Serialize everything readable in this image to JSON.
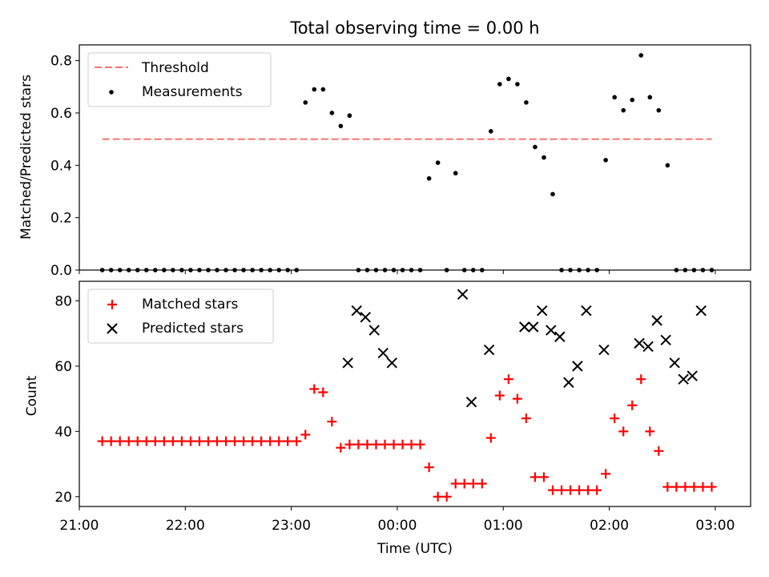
{
  "title": "Total observing time = 0.00 h",
  "chart_data": [
    {
      "type": "scatter",
      "ylabel": "Matched/Predicted stars",
      "xlabel": "",
      "xlim": [
        -180,
        200
      ],
      "ylim": [
        0,
        0.86
      ],
      "yticks": [
        0.0,
        0.2,
        0.4,
        0.6,
        0.8
      ],
      "ytick_labels": [
        "0.0",
        "0.2",
        "0.4",
        "0.6",
        "0.8"
      ],
      "legend": {
        "position": "top-left",
        "entries": [
          "Threshold",
          "Measurements"
        ]
      },
      "threshold": {
        "name": "Threshold",
        "y": 0.5,
        "x_range": [
          -167,
          178
        ],
        "color": "#ff7070",
        "style": "dashed"
      },
      "series": [
        {
          "name": "Measurements",
          "marker": "dot",
          "color": "#000000",
          "x": [
            -167,
            -162,
            -157,
            -152,
            -147,
            -142,
            -137,
            -132,
            -127,
            -122,
            -117,
            -112,
            -107,
            -102,
            -97,
            -92,
            -87,
            -82,
            -77,
            -72,
            -67,
            -62,
            -57,
            -52,
            -47,
            -42,
            -37,
            -32,
            -27,
            -22,
            -17,
            -12,
            -7,
            -2,
            3,
            8,
            13,
            18,
            23,
            28,
            33,
            38,
            43,
            48,
            53,
            58,
            63,
            68,
            73,
            78,
            83,
            88,
            93,
            98,
            103,
            108,
            113,
            118,
            123,
            128,
            133,
            138,
            143,
            148,
            153,
            158,
            163,
            168,
            173,
            178
          ],
          "y": [
            0,
            0,
            0,
            0,
            0,
            0,
            0,
            0,
            0,
            0,
            0,
            0,
            0,
            0,
            0,
            0,
            0,
            0,
            0,
            0,
            0,
            0,
            0,
            0.64,
            0.69,
            0.69,
            0.6,
            0.55,
            0.59,
            0,
            0,
            0,
            0,
            0,
            0,
            0,
            0,
            0.35,
            0.41,
            0,
            0.37,
            0,
            0,
            0,
            0.53,
            0.71,
            0.73,
            0.71,
            0.64,
            0.47,
            0.43,
            0.29,
            0,
            0,
            0,
            0,
            0,
            0.42,
            0.66,
            0.61,
            0.65,
            0.82,
            0.66,
            0.61,
            0.4,
            0,
            0,
            0,
            0,
            0
          ]
        }
      ]
    },
    {
      "type": "scatter",
      "ylabel": "Count",
      "xlabel": "Time (UTC)",
      "xlim": [
        -180,
        200
      ],
      "ylim": [
        17,
        86
      ],
      "yticks": [
        20,
        40,
        60,
        80
      ],
      "ytick_labels": [
        "20",
        "40",
        "60",
        "80"
      ],
      "xticks": [
        -180,
        -120,
        -60,
        0,
        60,
        120,
        180
      ],
      "xtick_labels": [
        "21:00",
        "22:00",
        "23:00",
        "00:00",
        "01:00",
        "02:00",
        "03:00"
      ],
      "legend": {
        "position": "top-left",
        "entries": [
          "Matched stars",
          "Predicted stars"
        ]
      },
      "series": [
        {
          "name": "Matched stars",
          "marker": "plus",
          "color": "#ff0000",
          "x": [
            -167,
            -162,
            -157,
            -152,
            -147,
            -142,
            -137,
            -132,
            -127,
            -122,
            -117,
            -112,
            -107,
            -102,
            -97,
            -92,
            -87,
            -82,
            -77,
            -72,
            -67,
            -62,
            -57,
            -52,
            -47,
            -42,
            -37,
            -32,
            -27,
            -22,
            -17,
            -12,
            -7,
            -2,
            3,
            8,
            13,
            18,
            23,
            28,
            33,
            38,
            43,
            48,
            53,
            58,
            63,
            68,
            73,
            78,
            83,
            88,
            93,
            98,
            103,
            108,
            113,
            118,
            123,
            128,
            133,
            138,
            143,
            148,
            153,
            158,
            163,
            168,
            173,
            178
          ],
          "y": [
            37,
            37,
            37,
            37,
            37,
            37,
            37,
            37,
            37,
            37,
            37,
            37,
            37,
            37,
            37,
            37,
            37,
            37,
            37,
            37,
            37,
            37,
            37,
            39,
            53,
            52,
            43,
            35,
            36,
            36,
            36,
            36,
            36,
            36,
            36,
            36,
            36,
            29,
            20,
            20,
            24,
            24,
            24,
            24,
            38,
            51,
            56,
            50,
            44,
            26,
            26,
            22,
            22,
            22,
            22,
            22,
            22,
            27,
            44,
            40,
            48,
            56,
            40,
            34,
            23,
            23,
            23,
            23,
            23,
            23
          ]
        },
        {
          "name": "Predicted stars",
          "marker": "x",
          "color": "#000000",
          "x": [
            -28,
            -23,
            -18,
            -13,
            -8,
            -3,
            37,
            42,
            52,
            72,
            77,
            82,
            87,
            92,
            97,
            102,
            107,
            117,
            137,
            142,
            147,
            152,
            157,
            162,
            167,
            172
          ],
          "y": [
            61,
            77,
            75,
            71,
            64,
            61,
            82,
            49,
            65,
            72,
            72,
            77,
            71,
            69,
            55,
            60,
            77,
            65,
            67,
            66,
            74,
            68,
            61,
            56,
            57,
            77
          ]
        }
      ]
    }
  ]
}
